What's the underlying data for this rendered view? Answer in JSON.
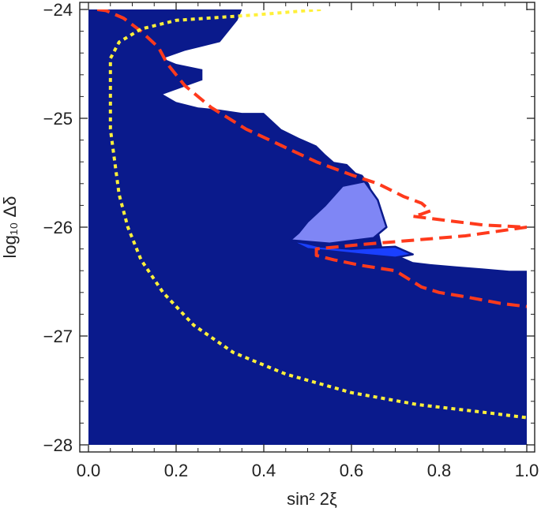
{
  "chart_data": {
    "type": "contour",
    "xlabel": "sin² 2ξ",
    "ylabel": "log₁₀ Δδ",
    "xlim": [
      0.0,
      1.0
    ],
    "ylim": [
      -28.0,
      -24.0
    ],
    "x_ticks": [
      "0.0",
      "0.2",
      "0.4",
      "0.6",
      "0.8",
      "1.0"
    ],
    "y_ticks": [
      "-28",
      "-27",
      "-26",
      "-25",
      "-24"
    ],
    "grid": false,
    "colors": {
      "outer_region": "#0a1a8c",
      "middle_region": "#1a40ff",
      "inner_region": "#7f86f5",
      "red_dashed": "#ff3a1c",
      "yellow_dotted": "#fff03a"
    },
    "regions": [
      {
        "name": "outer",
        "points": [
          [
            0.0,
            -28.0
          ],
          [
            1.0,
            -28.0
          ],
          [
            1.0,
            -26.4
          ],
          [
            0.96,
            -26.4
          ],
          [
            0.9,
            -26.38
          ],
          [
            0.84,
            -26.36
          ],
          [
            0.78,
            -26.34
          ],
          [
            0.74,
            -26.32
          ],
          [
            0.7,
            -26.25
          ],
          [
            0.67,
            -26.18
          ],
          [
            0.66,
            -26.0
          ],
          [
            0.665,
            -25.85
          ],
          [
            0.64,
            -25.6
          ],
          [
            0.625,
            -25.52
          ],
          [
            0.61,
            -25.5
          ],
          [
            0.59,
            -25.42
          ],
          [
            0.56,
            -25.4
          ],
          [
            0.54,
            -25.33
          ],
          [
            0.52,
            -25.25
          ],
          [
            0.48,
            -25.18
          ],
          [
            0.44,
            -25.1
          ],
          [
            0.4,
            -24.95
          ],
          [
            0.35,
            -24.95
          ],
          [
            0.3,
            -24.92
          ],
          [
            0.25,
            -24.9
          ],
          [
            0.2,
            -24.85
          ],
          [
            0.17,
            -24.78
          ],
          [
            0.26,
            -24.65
          ],
          [
            0.26,
            -24.55
          ],
          [
            0.2,
            -24.5
          ],
          [
            0.17,
            -24.45
          ],
          [
            0.22,
            -24.38
          ],
          [
            0.3,
            -24.3
          ],
          [
            0.34,
            -24.1
          ],
          [
            0.35,
            -24.0
          ],
          [
            0.0,
            -24.0
          ]
        ]
      },
      {
        "name": "middle",
        "points": [
          [
            0.46,
            -26.12
          ],
          [
            0.5,
            -26.15
          ],
          [
            0.53,
            -26.18
          ],
          [
            0.6,
            -26.2
          ],
          [
            0.7,
            -26.18
          ],
          [
            0.74,
            -26.25
          ],
          [
            0.7,
            -26.28
          ],
          [
            0.62,
            -26.25
          ],
          [
            0.55,
            -26.22
          ],
          [
            0.5,
            -26.2
          ]
        ]
      },
      {
        "name": "inner",
        "points": [
          [
            0.46,
            -26.12
          ],
          [
            0.55,
            -26.15
          ],
          [
            0.65,
            -26.1
          ],
          [
            0.68,
            -26.0
          ],
          [
            0.66,
            -25.75
          ],
          [
            0.63,
            -25.58
          ],
          [
            0.58,
            -25.62
          ],
          [
            0.54,
            -25.8
          ],
          [
            0.5,
            -25.95
          ],
          [
            0.48,
            -26.05
          ]
        ]
      }
    ],
    "series": [
      {
        "style": "dashed",
        "color": "red",
        "points": [
          [
            0.02,
            -24.0
          ],
          [
            0.04,
            -24.01
          ],
          [
            0.08,
            -24.08
          ],
          [
            0.12,
            -24.2
          ],
          [
            0.16,
            -24.35
          ],
          [
            0.18,
            -24.5
          ],
          [
            0.22,
            -24.7
          ],
          [
            0.28,
            -24.9
          ],
          [
            0.36,
            -25.1
          ],
          [
            0.44,
            -25.25
          ],
          [
            0.52,
            -25.4
          ],
          [
            0.6,
            -25.52
          ],
          [
            0.66,
            -25.6
          ],
          [
            0.72,
            -25.72
          ],
          [
            0.76,
            -25.78
          ],
          [
            0.78,
            -25.85
          ],
          [
            0.76,
            -25.88
          ],
          [
            0.74,
            -25.9
          ],
          [
            0.78,
            -25.92
          ],
          [
            0.84,
            -25.95
          ],
          [
            0.9,
            -25.98
          ],
          [
            1.0,
            -26.0
          ],
          [
            0.86,
            -26.08
          ],
          [
            0.74,
            -26.12
          ],
          [
            0.62,
            -26.16
          ],
          [
            0.52,
            -26.2
          ],
          [
            0.52,
            -26.26
          ],
          [
            0.56,
            -26.3
          ],
          [
            0.62,
            -26.35
          ],
          [
            0.7,
            -26.4
          ],
          [
            0.76,
            -26.55
          ],
          [
            0.8,
            -26.6
          ],
          [
            0.86,
            -26.64
          ],
          [
            0.94,
            -26.7
          ],
          [
            1.0,
            -26.73
          ]
        ]
      },
      {
        "style": "dotted",
        "color": "yellow",
        "points": [
          [
            0.53,
            -24.0
          ],
          [
            0.38,
            -24.05
          ],
          [
            0.2,
            -24.1
          ],
          [
            0.12,
            -24.18
          ],
          [
            0.07,
            -24.3
          ],
          [
            0.05,
            -24.45
          ],
          [
            0.05,
            -24.6
          ],
          [
            0.05,
            -24.8
          ],
          [
            0.05,
            -25.1
          ],
          [
            0.06,
            -25.4
          ],
          [
            0.07,
            -25.7
          ],
          [
            0.09,
            -26.0
          ],
          [
            0.12,
            -26.3
          ],
          [
            0.17,
            -26.6
          ],
          [
            0.24,
            -26.9
          ],
          [
            0.33,
            -27.15
          ],
          [
            0.45,
            -27.35
          ],
          [
            0.6,
            -27.52
          ],
          [
            0.75,
            -27.63
          ],
          [
            0.9,
            -27.7
          ],
          [
            1.0,
            -27.75
          ]
        ]
      }
    ]
  }
}
